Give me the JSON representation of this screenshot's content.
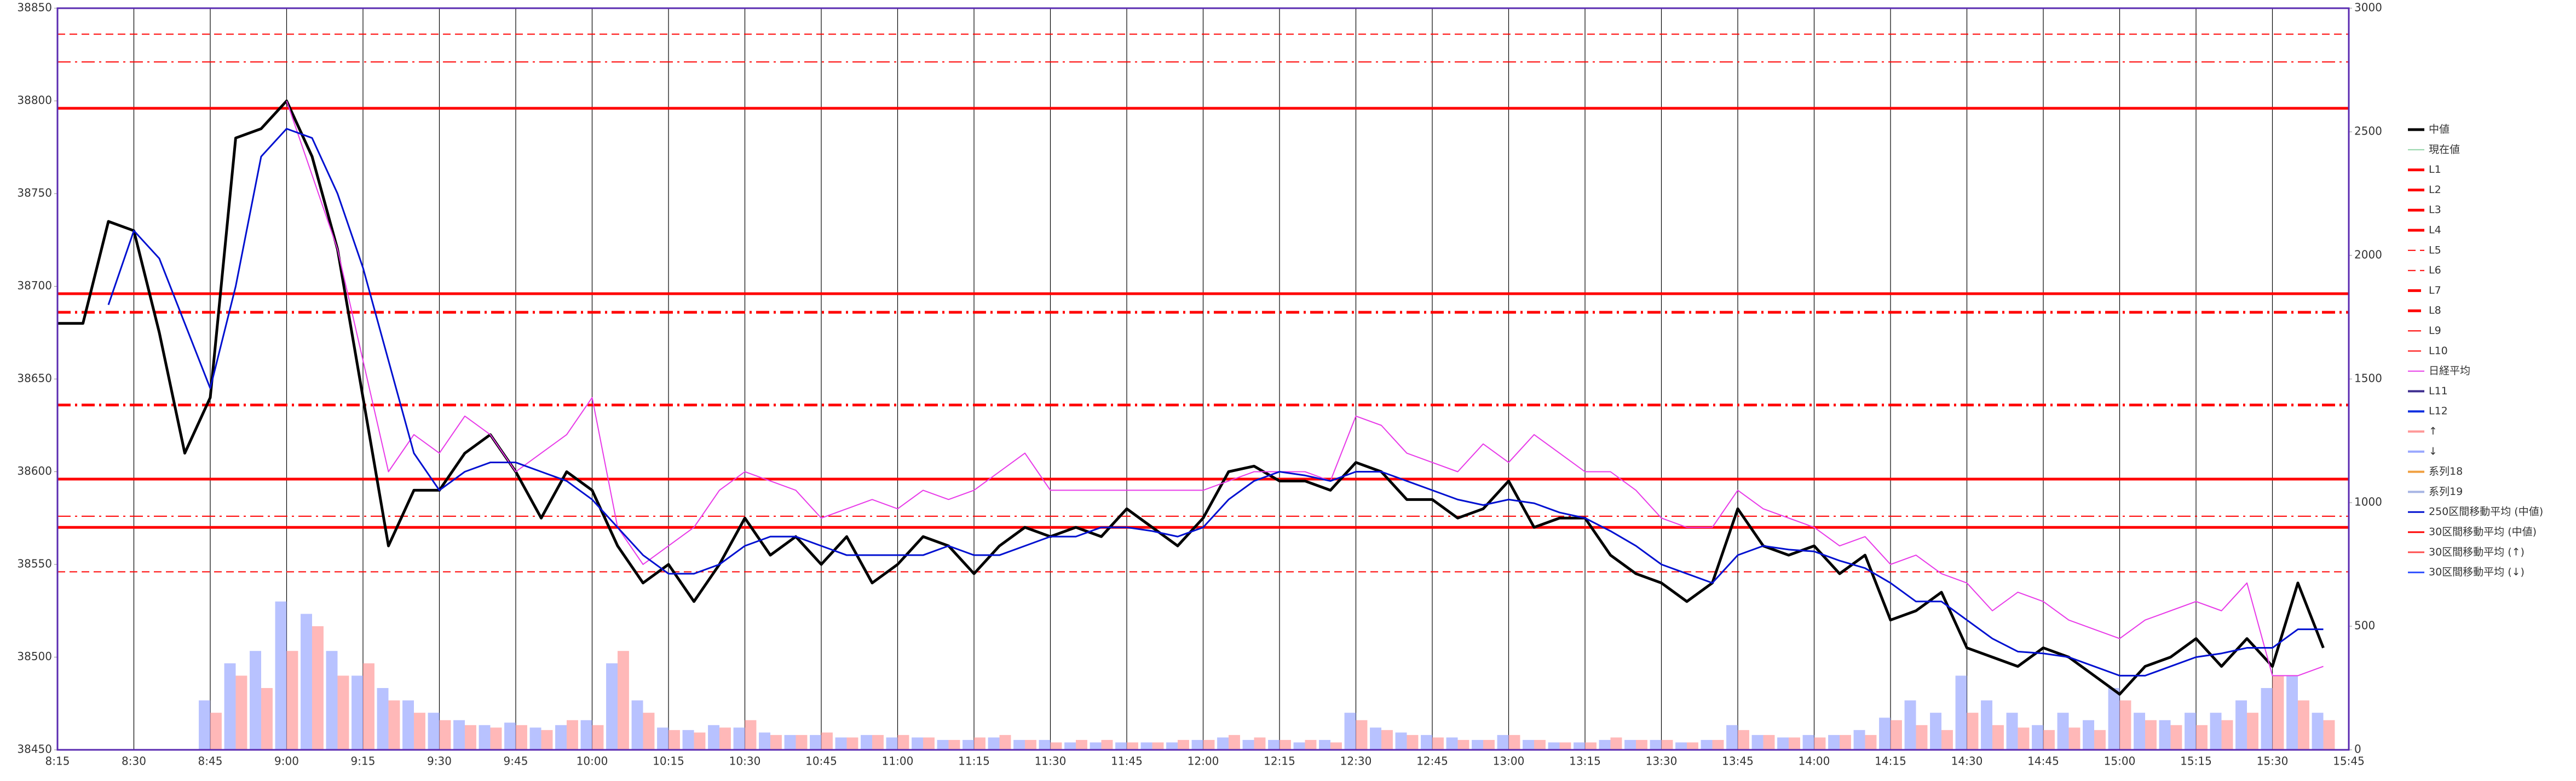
{
  "chart_data": {
    "type": "line",
    "xlim": [
      495,
      945
    ],
    "xticks": [
      {
        "value": 495,
        "label": "8:15"
      },
      {
        "value": 510,
        "label": "8:30"
      },
      {
        "value": 525,
        "label": "8:45"
      },
      {
        "value": 540,
        "label": "9:00"
      },
      {
        "value": 555,
        "label": "9:15"
      },
      {
        "value": 570,
        "label": "9:30"
      },
      {
        "value": 585,
        "label": "9:45"
      },
      {
        "value": 600,
        "label": "10:00"
      },
      {
        "value": 615,
        "label": "10:15"
      },
      {
        "value": 630,
        "label": "10:30"
      },
      {
        "value": 645,
        "label": "10:45"
      },
      {
        "value": 660,
        "label": "11:00"
      },
      {
        "value": 675,
        "label": "11:15"
      },
      {
        "value": 690,
        "label": "11:30"
      },
      {
        "value": 705,
        "label": "11:45"
      },
      {
        "value": 720,
        "label": "12:00"
      },
      {
        "value": 735,
        "label": "12:15"
      },
      {
        "value": 750,
        "label": "12:30"
      },
      {
        "value": 765,
        "label": "12:45"
      },
      {
        "value": 780,
        "label": "13:00"
      },
      {
        "value": 795,
        "label": "13:15"
      },
      {
        "value": 810,
        "label": "13:30"
      },
      {
        "value": 825,
        "label": "13:45"
      },
      {
        "value": 840,
        "label": "14:00"
      },
      {
        "value": 855,
        "label": "14:15"
      },
      {
        "value": 870,
        "label": "14:30"
      },
      {
        "value": 885,
        "label": "14:45"
      },
      {
        "value": 900,
        "label": "15:00"
      },
      {
        "value": 915,
        "label": "15:15"
      },
      {
        "value": 930,
        "label": "15:30"
      },
      {
        "value": 945,
        "label": "15:45"
      }
    ],
    "ylim": [
      38450,
      38850
    ],
    "yticks": [
      38450,
      38500,
      38550,
      38600,
      38650,
      38700,
      38750,
      38800,
      38850
    ],
    "y2lim": [
      0,
      3000
    ],
    "y2ticks": [
      0,
      500,
      1000,
      1500,
      2000,
      2500,
      3000
    ],
    "grid": "x",
    "legend": "right",
    "x": [
      495,
      500,
      505,
      510,
      515,
      520,
      525,
      530,
      535,
      540,
      545,
      550,
      555,
      560,
      565,
      570,
      575,
      580,
      585,
      590,
      595,
      600,
      605,
      610,
      615,
      620,
      625,
      630,
      635,
      640,
      645,
      650,
      655,
      660,
      665,
      670,
      675,
      680,
      685,
      690,
      695,
      700,
      705,
      710,
      715,
      720,
      725,
      730,
      735,
      740,
      745,
      750,
      755,
      760,
      765,
      770,
      775,
      780,
      785,
      790,
      795,
      800,
      805,
      810,
      815,
      820,
      825,
      830,
      835,
      840,
      845,
      850,
      855,
      860,
      865,
      870,
      875,
      880,
      885,
      890,
      895,
      900,
      905,
      910,
      915,
      920,
      925,
      930,
      935,
      940
    ],
    "series": [
      {
        "name": "中値",
        "color": "#000000",
        "width": 5,
        "values": [
          38680,
          38680,
          38735,
          38730,
          38675,
          38610,
          38640,
          38780,
          38785,
          38800,
          38770,
          38720,
          38640,
          38560,
          38590,
          38590,
          38610,
          38620,
          38600,
          38575,
          38600,
          38590,
          38560,
          38540,
          38550,
          38530,
          38550,
          38575,
          38555,
          38565,
          38550,
          38565,
          38540,
          38550,
          38565,
          38560,
          38545,
          38560,
          38570,
          38565,
          38570,
          38565,
          38580,
          38570,
          38560,
          38575,
          38600,
          38603,
          38595,
          38595,
          38590,
          38605,
          38600,
          38585,
          38585,
          38575,
          38580,
          38595,
          38570,
          38575,
          38575,
          38555,
          38545,
          38540,
          38530,
          38540,
          38580,
          38560,
          38555,
          38560,
          38545,
          38555,
          38520,
          38525,
          38535,
          38505,
          38500,
          38495,
          38505,
          38500,
          38490,
          38480,
          38495,
          38500,
          38510,
          38495,
          38510,
          38495,
          38540,
          38505
        ]
      },
      {
        "name": "現在値",
        "color": "#8fd3a5",
        "width": 2
      },
      {
        "name": "L1",
        "color": "#ff0000",
        "width": 5,
        "style": "solid",
        "value": 38796
      },
      {
        "name": "L2",
        "color": "#ff0000",
        "width": 5,
        "style": "solid",
        "value": 38696
      },
      {
        "name": "L3",
        "color": "#ff0000",
        "width": 5,
        "style": "solid",
        "value": 38596
      },
      {
        "name": "L4",
        "color": "#ff0000",
        "width": 5,
        "style": "solid",
        "value": 38570
      },
      {
        "name": "L5",
        "color": "#ff0000",
        "width": 2,
        "style": "dash",
        "value": 38836
      },
      {
        "name": "L6",
        "color": "#ff0000",
        "width": 2,
        "style": "dash",
        "value": 38546
      },
      {
        "name": "L7",
        "color": "#ff0000",
        "width": 5,
        "style": "dashdot",
        "value": 38686
      },
      {
        "name": "L8",
        "color": "#ff0000",
        "width": 5,
        "style": "dashdot",
        "value": 38636
      },
      {
        "name": "L9",
        "color": "#ff0000",
        "width": 2,
        "style": "dashdot",
        "value": 38821
      },
      {
        "name": "L10",
        "color": "#ff0000",
        "width": 2,
        "style": "dashdot",
        "value": 38576
      },
      {
        "name": "日経平均",
        "color": "#e83ae8",
        "width": 2,
        "values": [
          null,
          null,
          null,
          null,
          null,
          null,
          null,
          null,
          null,
          38800,
          38760,
          38720,
          38660,
          38600,
          38620,
          38610,
          38630,
          38620,
          38600,
          38610,
          38620,
          38640,
          38570,
          38550,
          38560,
          38570,
          38590,
          38600,
          38595,
          38590,
          38575,
          38580,
          38585,
          38580,
          38590,
          38585,
          38590,
          38600,
          38610,
          38590,
          38590,
          38590,
          38590,
          38590,
          38590,
          38590,
          38595,
          38600,
          38600,
          38600,
          38595,
          38630,
          38625,
          38610,
          38605,
          38600,
          38615,
          38605,
          38620,
          38610,
          38600,
          38600,
          38590,
          38575,
          38570,
          38570,
          38590,
          38580,
          38575,
          38570,
          38560,
          38565,
          38550,
          38555,
          38545,
          38540,
          38525,
          38535,
          38530,
          38520,
          38515,
          38510,
          38520,
          38525,
          38530,
          38525,
          38540,
          38490,
          38490,
          38495
        ]
      },
      {
        "name": "L11",
        "color": "#3f2f8f",
        "width": 4
      },
      {
        "name": "L12",
        "color": "#1030e0",
        "width": 4
      },
      {
        "name": "↑",
        "color": "#ff9a9a",
        "width": 4,
        "axis": "y2",
        "kind": "bar",
        "values": [
          0,
          0,
          0,
          0,
          0,
          0,
          150,
          300,
          250,
          400,
          500,
          300,
          350,
          200,
          150,
          120,
          100,
          90,
          100,
          80,
          120,
          100,
          400,
          150,
          80,
          70,
          90,
          120,
          60,
          60,
          70,
          50,
          60,
          60,
          50,
          40,
          50,
          60,
          40,
          30,
          40,
          40,
          30,
          30,
          40,
          40,
          60,
          50,
          40,
          40,
          30,
          120,
          80,
          60,
          50,
          40,
          40,
          60,
          40,
          30,
          30,
          50,
          40,
          40,
          30,
          40,
          80,
          60,
          50,
          50,
          60,
          60,
          120,
          100,
          80,
          150,
          100,
          90,
          80,
          90,
          80,
          200,
          120,
          100,
          100,
          120,
          150,
          300,
          200,
          120
        ]
      },
      {
        "name": "↓",
        "color": "#9aa8ff",
        "width": 4,
        "axis": "y2",
        "kind": "bar",
        "values": [
          0,
          0,
          0,
          0,
          0,
          0,
          200,
          350,
          400,
          600,
          550,
          400,
          300,
          250,
          200,
          150,
          120,
          100,
          110,
          90,
          100,
          120,
          350,
          200,
          90,
          80,
          100,
          90,
          70,
          60,
          60,
          50,
          60,
          50,
          50,
          40,
          40,
          50,
          40,
          40,
          30,
          30,
          30,
          30,
          30,
          40,
          50,
          40,
          40,
          30,
          40,
          150,
          90,
          70,
          60,
          50,
          40,
          60,
          40,
          30,
          30,
          40,
          40,
          40,
          30,
          40,
          100,
          60,
          50,
          60,
          60,
          80,
          130,
          200,
          150,
          300,
          200,
          150,
          100,
          150,
          120,
          250,
          150,
          120,
          150,
          150,
          200,
          250,
          300,
          150
        ]
      },
      {
        "name": "系列18",
        "color": "#f0a040",
        "width": 4
      },
      {
        "name": "系列19",
        "color": "#a6b4e4",
        "width": 4
      },
      {
        "name": "250区間移動平均 (中値)",
        "color": "#0010d0",
        "width": 3,
        "values": [
          null,
          null,
          38690,
          38730,
          38715,
          38680,
          38645,
          38700,
          38770,
          38785,
          38780,
          38750,
          38710,
          38660,
          38610,
          38590,
          38600,
          38605,
          38605,
          38600,
          38595,
          38585,
          38570,
          38555,
          38545,
          38545,
          38550,
          38560,
          38565,
          38565,
          38560,
          38555,
          38555,
          38555,
          38555,
          38560,
          38555,
          38555,
          38560,
          38565,
          38565,
          38570,
          38570,
          38568,
          38565,
          38570,
          38585,
          38595,
          38600,
          38598,
          38595,
          38600,
          38600,
          38595,
          38590,
          38585,
          38582,
          38585,
          38583,
          38578,
          38575,
          38568,
          38560,
          38550,
          38545,
          38540,
          38555,
          38560,
          38558,
          38557,
          38552,
          38548,
          38540,
          38530,
          38530,
          38520,
          38510,
          38503,
          38502,
          38500,
          38495,
          38490,
          38490,
          38495,
          38500,
          38502,
          38505,
          38505,
          38515,
          38515
        ]
      },
      {
        "name": "30区間移動平均 (中値)",
        "color": "#ff0000",
        "width": 3
      },
      {
        "name": "30区間移動平均 (↑)",
        "color": "#ff5050",
        "width": 3
      },
      {
        "name": "30区間移動平均 (↓)",
        "color": "#3050ff",
        "width": 3
      }
    ]
  }
}
